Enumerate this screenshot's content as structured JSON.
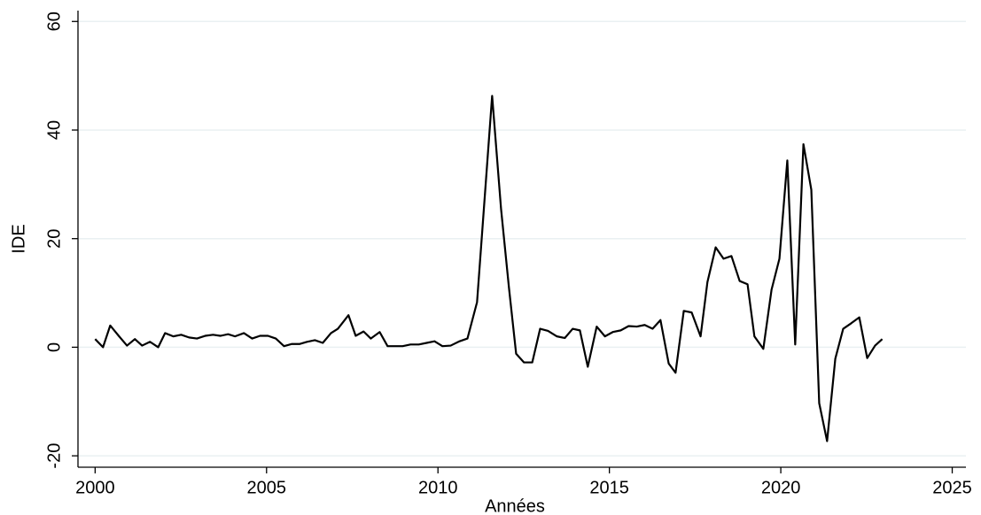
{
  "chart_data": {
    "type": "line",
    "x_label": "Années",
    "y_label": "IDE",
    "x": [
      2000,
      2000.23,
      2000.44,
      2000.7,
      2000.93,
      2001.16,
      2001.37,
      2001.6,
      2001.84,
      2002.04,
      2002.28,
      2002.51,
      2002.74,
      2002.97,
      2003.21,
      2003.44,
      2003.65,
      2003.88,
      2004.08,
      2004.34,
      2004.58,
      2004.81,
      2005.04,
      2005.27,
      2005.51,
      2005.74,
      2005.97,
      2006.18,
      2006.41,
      2006.64,
      2006.88,
      2007.08,
      2007.39,
      2007.6,
      2007.83,
      2008.04,
      2008.3,
      2008.53,
      2008.76,
      2008.97,
      2009.2,
      2009.44,
      2009.67,
      2009.9,
      2010.13,
      2010.37,
      2010.63,
      2010.86,
      2011.14,
      2011.58,
      2011.84,
      2012.07,
      2012.28,
      2012.51,
      2012.75,
      2012.98,
      2013.21,
      2013.47,
      2013.7,
      2013.93,
      2014.14,
      2014.37,
      2014.63,
      2014.87,
      2015.1,
      2015.33,
      2015.56,
      2015.8,
      2016.03,
      2016.26,
      2016.49,
      2016.73,
      2016.93,
      2017.17,
      2017.4,
      2017.66,
      2017.86,
      2018.1,
      2018.33,
      2018.56,
      2018.8,
      2019.03,
      2019.23,
      2019.49,
      2019.73,
      2019.96,
      2020.19,
      2020.42,
      2020.66,
      2020.89,
      2021.12,
      2021.35,
      2021.59,
      2021.82,
      2022.05,
      2022.29,
      2022.52,
      2022.75,
      2022.96
    ],
    "series": [
      {
        "color": "#000000",
        "values": [
          1.5,
          0,
          4,
          2,
          0.3,
          1.5,
          0.3,
          1,
          0,
          2.6,
          2,
          2.3,
          1.8,
          1.6,
          2.1,
          2.3,
          2.1,
          2.4,
          2,
          2.6,
          1.6,
          2.1,
          2.1,
          1.6,
          0.2,
          0.6,
          0.6,
          1,
          1.3,
          0.8,
          2.6,
          3.4,
          5.9,
          2.1,
          2.9,
          1.6,
          2.8,
          0.2,
          0.2,
          0.2,
          0.5,
          0.5,
          0.8,
          1.1,
          0.2,
          0.3,
          1.1,
          1.6,
          8.3,
          46.3,
          25.5,
          11,
          -1.2,
          -2.8,
          -2.8,
          3.4,
          3,
          2,
          1.7,
          3.4,
          3.1,
          -3.6,
          3.8,
          2,
          2.8,
          3.1,
          3.9,
          3.8,
          4.1,
          3.4,
          5,
          -3,
          -4.7,
          6.7,
          6.4,
          2,
          12,
          18.4,
          16.3,
          16.8,
          12.2,
          11.6,
          2,
          -0.3,
          10.6,
          16.3,
          34.4,
          0.5,
          37.4,
          29,
          -10.3,
          -17.3,
          -2.1,
          3.4,
          4.4,
          5.5,
          -2,
          0.3,
          1.5
        ]
      }
    ],
    "xlim": [
      1999.5,
      2025.4
    ],
    "xticks": [
      2000,
      2005,
      2010,
      2015,
      2020,
      2025
    ],
    "ylim": [
      -22.1,
      62
    ],
    "yticks": [
      -20,
      0,
      20,
      40,
      60
    ],
    "grid": true
  }
}
